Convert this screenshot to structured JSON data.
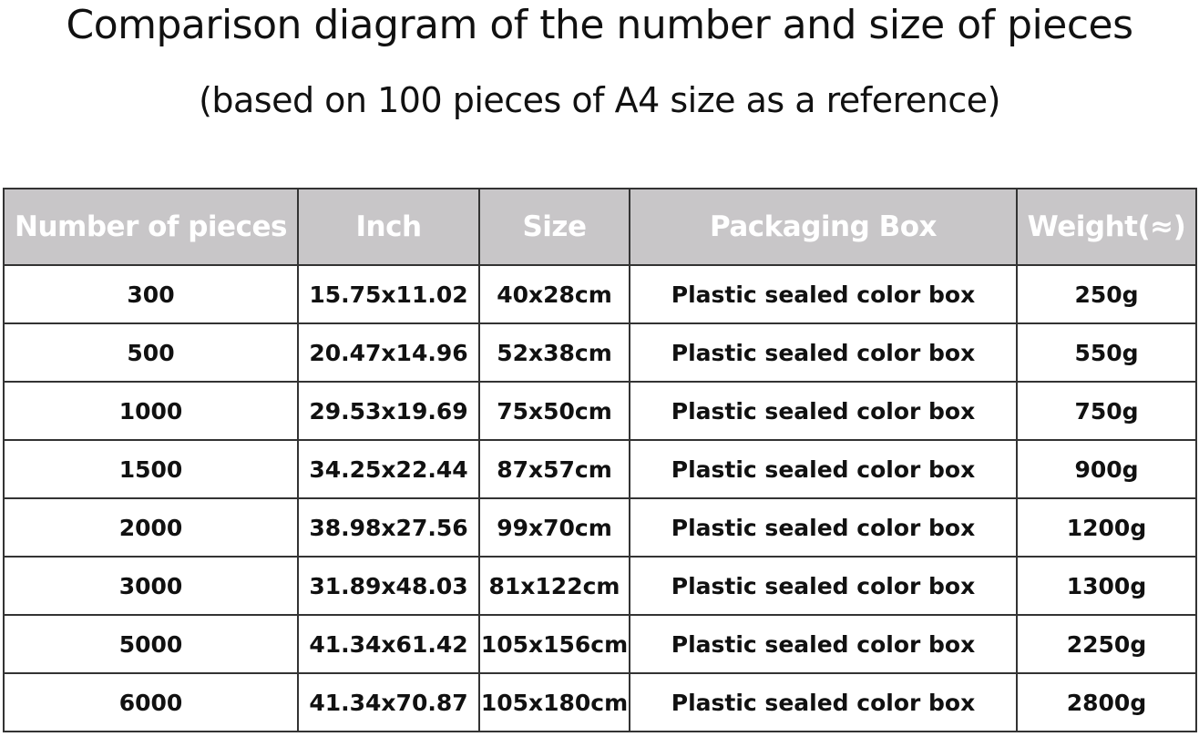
{
  "title": "Comparison diagram of the number and size of pieces",
  "subtitle": "(based on 100 pieces of A4 size as a reference)",
  "table": {
    "headers": [
      "Number of pieces",
      "Inch",
      "Size",
      "Packaging Box",
      "Weight(≈)"
    ],
    "rows": [
      [
        "300",
        "15.75x11.02",
        "40x28cm",
        "Plastic sealed color box",
        "250g"
      ],
      [
        "500",
        "20.47x14.96",
        "52x38cm",
        "Plastic sealed color box",
        "550g"
      ],
      [
        "1000",
        "29.53x19.69",
        "75x50cm",
        "Plastic sealed color box",
        "750g"
      ],
      [
        "1500",
        "34.25x22.44",
        "87x57cm",
        "Plastic sealed color box",
        "900g"
      ],
      [
        "2000",
        "38.98x27.56",
        "99x70cm",
        "Plastic sealed color box",
        "1200g"
      ],
      [
        "3000",
        "31.89x48.03",
        "81x122cm",
        "Plastic sealed color box",
        "1300g"
      ],
      [
        "5000",
        "41.34x61.42",
        "105x156cm",
        "Plastic sealed color box",
        "2250g"
      ],
      [
        "6000",
        "41.34x70.87",
        "105x180cm",
        "Plastic sealed color box",
        "2800g"
      ]
    ]
  },
  "colors": {
    "header_bg": "#c8c6c8",
    "header_text": "#ffffff",
    "border": "#333333"
  }
}
